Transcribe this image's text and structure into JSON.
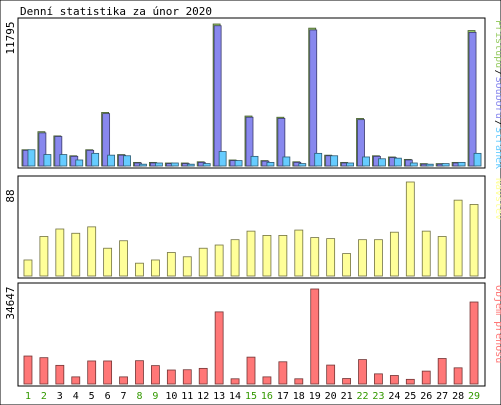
{
  "title": "Denní statistika za únor 2020",
  "chart_data": {
    "type": "bar",
    "title": "Denní statistika za únor 2020",
    "days": [
      "1",
      "2",
      "3",
      "4",
      "5",
      "6",
      "7",
      "8",
      "9",
      "10",
      "11",
      "12",
      "13",
      "14",
      "15",
      "16",
      "17",
      "18",
      "19",
      "20",
      "21",
      "22",
      "23",
      "24",
      "25",
      "26",
      "27",
      "28",
      "29"
    ],
    "weekend_days": [
      "1",
      "2",
      "8",
      "9",
      "15",
      "16",
      "22",
      "23",
      "29"
    ],
    "panels": [
      {
        "name": "requests",
        "ymax_label": "11795",
        "ymax": 11795,
        "legend": [
          {
            "label": "Přístupů",
            "color": "#99cc66"
          },
          {
            "label": "Souborů",
            "color": "#8888ee"
          },
          {
            "label": "Stránek",
            "color": "#66ccff"
          }
        ],
        "series": [
          {
            "name": "Přístupů",
            "color": "#99cc66",
            "values": [
              1350,
              2850,
              2500,
              850,
              1350,
              4450,
              950,
              300,
              300,
              250,
              250,
              350,
              11795,
              500,
              4150,
              450,
              4050,
              350,
              11450,
              900,
              300,
              3950,
              850,
              750,
              550,
              200,
              200,
              300,
              11250
            ]
          },
          {
            "name": "Souborů",
            "color": "#8888ee",
            "values": [
              1300,
              2750,
              2450,
              800,
              1300,
              4350,
              900,
              250,
              250,
              200,
              200,
              300,
              11650,
              450,
              4050,
              400,
              3950,
              300,
              11300,
              850,
              250,
              3850,
              800,
              700,
              500,
              150,
              150,
              250,
              11100
            ]
          },
          {
            "name": "Stránek",
            "color": "#66ccff",
            "values": [
              1350,
              950,
              950,
              500,
              1050,
              900,
              850,
              150,
              250,
              250,
              150,
              200,
              1200,
              450,
              800,
              300,
              750,
              200,
              1050,
              850,
              250,
              750,
              600,
              650,
              250,
              150,
              200,
              300,
              1050
            ]
          }
        ]
      },
      {
        "name": "visits",
        "ymax_label": "88",
        "ymax": 88,
        "legend": [
          {
            "label": "Návštěv",
            "color": "#ffff99"
          }
        ],
        "series": [
          {
            "name": "Návštěv",
            "color": "#ffff99",
            "values": [
              15,
              37,
              44,
              40,
              46,
              26,
              33,
              12,
              15,
              22,
              18,
              26,
              29,
              34,
              42,
              38,
              38,
              43,
              36,
              35,
              21,
              34,
              34,
              41,
              88,
              42,
              37,
              71,
              67
            ]
          }
        ]
      },
      {
        "name": "traffic",
        "ymax_label": "34647",
        "ymax": 34647,
        "legend": [
          {
            "label": "Objem přenosu",
            "color": "#ff7777"
          }
        ],
        "series": [
          {
            "name": "Objem přenosu",
            "color": "#ff7777",
            "values": [
              10200,
              9600,
              6800,
              2600,
              8400,
              8400,
              2600,
              8500,
              6700,
              5100,
              5200,
              5700,
              26300,
              1900,
              9800,
              2600,
              8100,
              1900,
              34647,
              6900,
              2000,
              8900,
              3700,
              3100,
              1700,
              4700,
              9300,
              5900,
              29900
            ]
          }
        ]
      }
    ],
    "colors": {
      "background": "#ffffff",
      "frame": "#000000",
      "weekday_label": "#000000",
      "weekend_label": "#339900"
    }
  }
}
